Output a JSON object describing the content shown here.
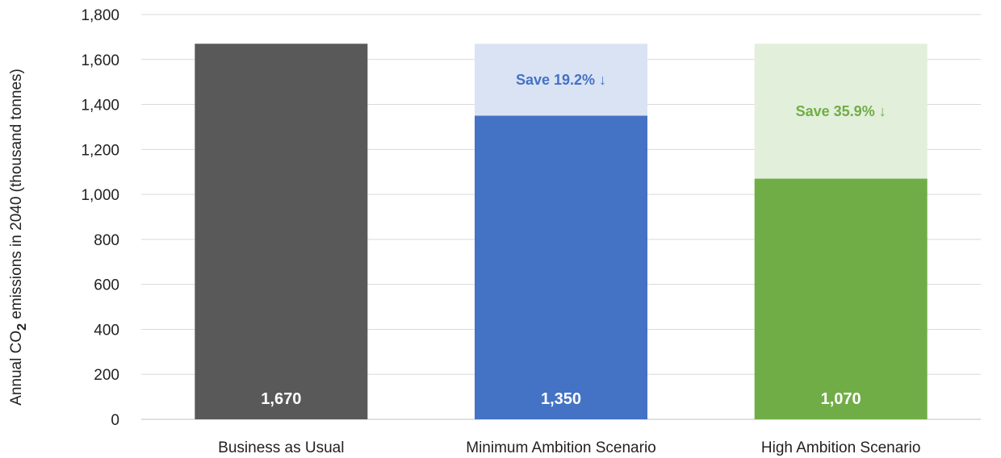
{
  "chart_data": {
    "type": "bar",
    "title": "",
    "xlabel": "",
    "ylabel": {
      "prefix": "Annual CO",
      "subscript": "2",
      "suffix": " emissions in 2040 (thousand tonnes)"
    },
    "ylim": [
      0,
      1800
    ],
    "yticks": [
      0,
      200,
      400,
      600,
      800,
      1000,
      1200,
      1400,
      1600,
      1800
    ],
    "ytick_labels": [
      "0",
      "200",
      "400",
      "600",
      "800",
      "1,000",
      "1,200",
      "1,400",
      "1,600",
      "1,800"
    ],
    "grid": true,
    "baseline": 1670,
    "categories": [
      "Business as Usual",
      "Minimum Ambition Scenario",
      "High Ambition Scenario"
    ],
    "values": [
      1670,
      1350,
      1070
    ],
    "value_labels": [
      "1,670",
      "1,350",
      "1,070"
    ],
    "annotations": [
      "",
      "Save 19.2% ↓",
      "Save 35.9% ↓"
    ],
    "colors": [
      "#595959",
      "#4472c4",
      "#70ad47"
    ],
    "savings_colors": [
      "",
      "#dae3f3",
      "#e2efda"
    ]
  }
}
